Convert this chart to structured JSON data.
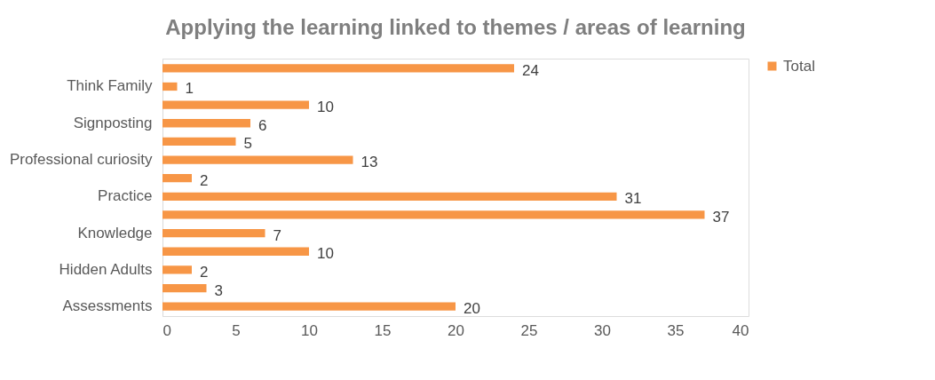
{
  "chart_data": {
    "type": "bar",
    "orientation": "horizontal",
    "title": "Applying the learning linked to themes / areas of learning",
    "categories": [
      null,
      "Think Family",
      null,
      "Signposting",
      null,
      "Professional curiosity",
      null,
      "Practice",
      null,
      "Knowledge",
      null,
      "Hidden Adults",
      null,
      "Assessments"
    ],
    "series": [
      {
        "name": "Total",
        "color": "#f79646",
        "values": [
          24,
          1,
          10,
          6,
          5,
          13,
          2,
          31,
          37,
          7,
          10,
          2,
          3,
          20
        ]
      }
    ],
    "xlim": [
      0,
      40
    ],
    "xticks": [
      0,
      5,
      10,
      15,
      20,
      25,
      30,
      35,
      40
    ],
    "grid": false,
    "legend": "right",
    "data_labels": true
  }
}
